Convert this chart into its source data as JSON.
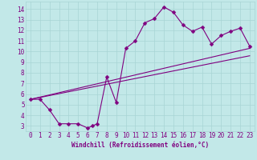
{
  "title": "",
  "xlabel": "Windchill (Refroidissement éolien,°C)",
  "bg_color": "#c2e8e8",
  "line_color": "#800080",
  "grid_color": "#a8d4d4",
  "axis_color": "#800080",
  "tick_color": "#800080",
  "xlim": [
    -0.5,
    23.5
  ],
  "ylim": [
    2.5,
    14.7
  ],
  "xticks": [
    0,
    1,
    2,
    3,
    4,
    5,
    6,
    7,
    8,
    9,
    10,
    11,
    12,
    13,
    14,
    15,
    16,
    17,
    18,
    19,
    20,
    21,
    22,
    23
  ],
  "yticks": [
    3,
    4,
    5,
    6,
    7,
    8,
    9,
    10,
    11,
    12,
    13,
    14
  ],
  "curve1_x": [
    0,
    1,
    2,
    3,
    4,
    5,
    6,
    6.5,
    7,
    8,
    9,
    10,
    11,
    12,
    13,
    14,
    15,
    16,
    17,
    18,
    19,
    20,
    21,
    22,
    23
  ],
  "curve1_y": [
    5.5,
    5.5,
    4.5,
    3.2,
    3.2,
    3.2,
    2.8,
    3.0,
    3.2,
    7.6,
    5.2,
    10.3,
    11.0,
    12.7,
    13.1,
    14.2,
    13.7,
    12.5,
    11.9,
    12.3,
    10.7,
    11.5,
    11.9,
    12.2,
    10.5
  ],
  "line1_x": [
    0,
    23
  ],
  "line1_y": [
    5.5,
    10.3
  ],
  "line2_x": [
    0,
    23
  ],
  "line2_y": [
    5.5,
    9.6
  ],
  "marker": "D",
  "markersize": 2.5,
  "linewidth": 0.8,
  "fontsize_ticks": 5.5,
  "fontsize_xlabel": 5.5
}
